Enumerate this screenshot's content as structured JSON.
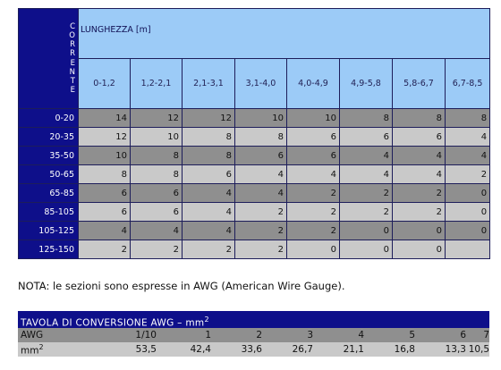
{
  "table": {
    "corner_letters": [
      "C",
      "O",
      "R",
      "R",
      "E",
      "N",
      "T",
      "E"
    ],
    "title": "LUNGHEZZA [m]",
    "length_ranges": [
      "0-1,2",
      "1,2-2,1",
      "2,1-3,1",
      "3,1-4,0",
      "4,0-4,9",
      "4,9-5,8",
      "5,8-6,7",
      "6,7-8,5"
    ],
    "rows": [
      {
        "current": "0-20",
        "values": [
          "14",
          "12",
          "12",
          "10",
          "10",
          "8",
          "8",
          "8"
        ]
      },
      {
        "current": "20-35",
        "values": [
          "12",
          "10",
          "8",
          "8",
          "6",
          "6",
          "6",
          "4"
        ]
      },
      {
        "current": "35-50",
        "values": [
          "10",
          "8",
          "8",
          "6",
          "6",
          "4",
          "4",
          "4"
        ]
      },
      {
        "current": "50-65",
        "values": [
          "8",
          "8",
          "6",
          "4",
          "4",
          "4",
          "4",
          "2"
        ]
      },
      {
        "current": "65-85",
        "values": [
          "6",
          "6",
          "4",
          "4",
          "2",
          "2",
          "2",
          "0"
        ]
      },
      {
        "current": "85-105",
        "values": [
          "6",
          "6",
          "4",
          "2",
          "2",
          "2",
          "2",
          "0"
        ]
      },
      {
        "current": "105-125",
        "values": [
          "4",
          "4",
          "4",
          "2",
          "2",
          "0",
          "0",
          "0"
        ]
      },
      {
        "current": "125-150",
        "values": [
          "2",
          "2",
          "2",
          "2",
          "0",
          "0",
          "0",
          ""
        ]
      }
    ]
  },
  "note": "NOTA: le sezioni sono espresse in AWG (American Wire Gauge).",
  "conversion": {
    "title": "TAVOLA DI CONVERSIONE AWG – mm",
    "title_sup": "2",
    "awg_label": "AWG",
    "awg_values": [
      "1/10",
      "1",
      "2",
      "3",
      "4",
      "5",
      "6",
      "7"
    ],
    "mm_label": "mm",
    "mm_sup": "2",
    "mm_values": [
      "53,5",
      "42,4",
      "33,6",
      "26,7",
      "21,1",
      "16,8",
      "13,3",
      "10,5"
    ]
  },
  "colors": {
    "header_navy": "#0e0f8a",
    "header_light_blue": "#9ccbf7",
    "cell_dark_gray": "#8f8f8f",
    "cell_light_gray": "#c9c9c9"
  }
}
